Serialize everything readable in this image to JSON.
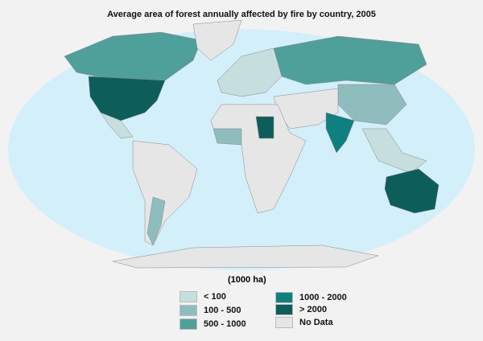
{
  "title": "Average area of forest annually affected by fire by country, 2005",
  "legend": {
    "unit": "(1000 ha)",
    "items": [
      {
        "label": "< 100",
        "color": "#c6dede"
      },
      {
        "label": "100 - 500",
        "color": "#8fbdbd"
      },
      {
        "label": "500 - 1000",
        "color": "#4f9f9b"
      },
      {
        "label": "1000 - 2000",
        "color": "#0f807f"
      },
      {
        "label": "> 2000",
        "color": "#0d5e5a"
      },
      {
        "label": "No Data",
        "color": "#e6e6e6"
      }
    ]
  },
  "colors": {
    "ocean": "#d3effa",
    "border": "#999999"
  }
}
